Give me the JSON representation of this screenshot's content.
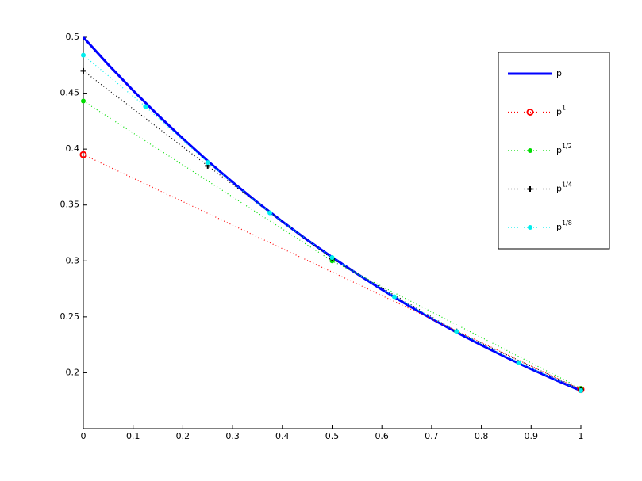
{
  "chart_data": {
    "type": "line",
    "xlim": [
      0,
      1
    ],
    "ylim": [
      0.15,
      0.5
    ],
    "xticks": [
      0,
      0.1,
      0.2,
      0.3,
      0.4,
      0.5,
      0.6,
      0.7,
      0.8,
      0.9,
      1
    ],
    "yticks": [
      0.2,
      0.25,
      0.3,
      0.35,
      0.4,
      0.45,
      0.5
    ],
    "legend": "upper right",
    "series": [
      {
        "name": "p",
        "color": "#0000ff",
        "linestyle": "solid",
        "marker": "none",
        "x": [
          0,
          0.05,
          0.1,
          0.15,
          0.2,
          0.25,
          0.3,
          0.35,
          0.4,
          0.45,
          0.5,
          0.55,
          0.6,
          0.65,
          0.7,
          0.75,
          0.8,
          0.85,
          0.9,
          0.95,
          1
        ],
        "values": [
          0.5,
          0.4756,
          0.4524,
          0.4304,
          0.4094,
          0.3894,
          0.3704,
          0.3523,
          0.3352,
          0.3188,
          0.3033,
          0.2885,
          0.2744,
          0.261,
          0.2483,
          0.2362,
          0.2247,
          0.2137,
          0.2033,
          0.1934,
          0.1839
        ]
      },
      {
        "name": "p",
        "exponent": "1",
        "color": "#ff0000",
        "linestyle": "dotted",
        "marker": "o",
        "x": [
          0,
          1
        ],
        "values": [
          0.395,
          0.185
        ]
      },
      {
        "name": "p",
        "exponent": "1/2",
        "color": "#00dd00",
        "linestyle": "dotted",
        "marker": ".",
        "x": [
          0,
          0.5,
          1
        ],
        "values": [
          0.443,
          0.3,
          0.186
        ]
      },
      {
        "name": "p",
        "exponent": "1/4",
        "color": "#000000",
        "linestyle": "dotted",
        "marker": "+",
        "x": [
          0,
          0.25,
          0.5,
          0.75,
          1
        ],
        "values": [
          0.47,
          0.385,
          0.302,
          0.237,
          0.185
        ]
      },
      {
        "name": "p",
        "exponent": "1/8",
        "color": "#00eeee",
        "linestyle": "dotted",
        "marker": ".",
        "x": [
          0,
          0.125,
          0.25,
          0.375,
          0.5,
          0.625,
          0.75,
          0.875,
          1
        ],
        "values": [
          0.484,
          0.438,
          0.388,
          0.343,
          0.303,
          0.268,
          0.237,
          0.209,
          0.184
        ]
      }
    ]
  }
}
